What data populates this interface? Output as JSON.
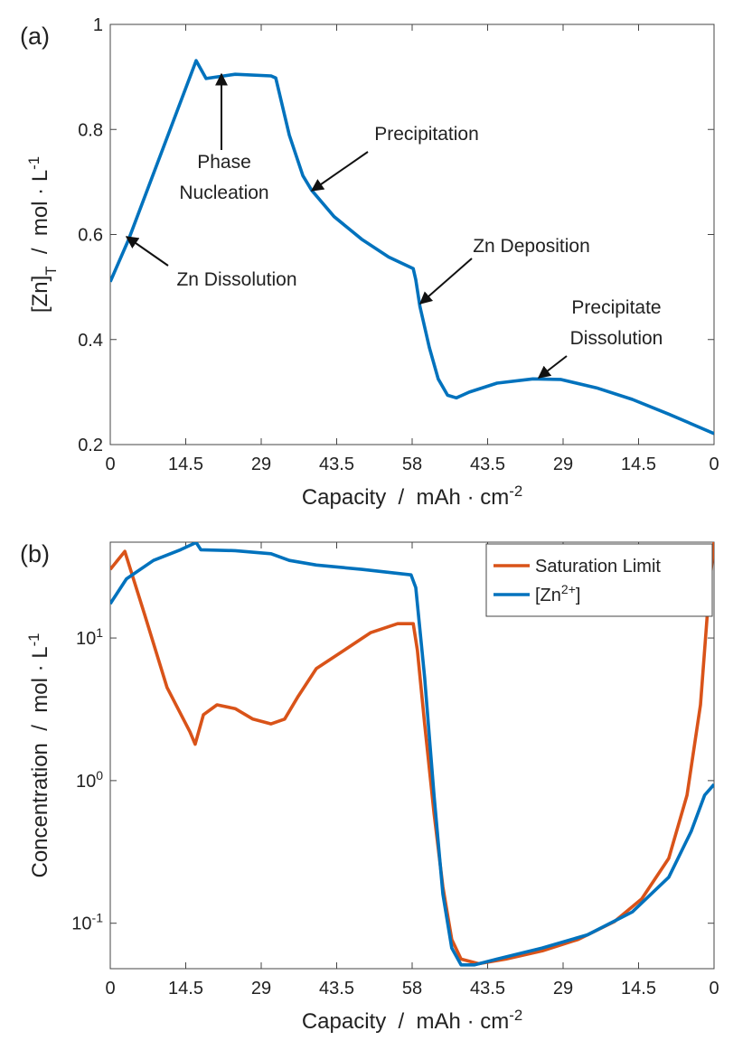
{
  "chart_data": [
    {
      "type": "line",
      "panel_label": "(a)",
      "xlabel": [
        {
          "text": "Capacity  /  mAh · cm"
        },
        {
          "sup": "-2"
        }
      ],
      "ylabel": [
        {
          "text": "[Zn]"
        },
        {
          "sub": "T"
        },
        {
          "text": "  /  mol · L"
        },
        {
          "sup": "-1"
        }
      ],
      "xlim": [
        0,
        116
      ],
      "ylim": [
        0.2,
        1
      ],
      "xticks": [
        0,
        14.5,
        29,
        43.5,
        58,
        {
          "value": 72.5,
          "label": "43.5"
        },
        {
          "value": 87,
          "label": "29"
        },
        {
          "value": 101.5,
          "label": "14.5"
        },
        {
          "value": 116,
          "label": "0"
        }
      ],
      "yticks": [
        0.2,
        0.4,
        0.6,
        0.8,
        1
      ],
      "annotations": [
        [
          "Phase",
          "Nucleation"
        ],
        [
          "Precipitation"
        ],
        [
          "Zn Dissolution"
        ],
        [
          "Zn Deposition"
        ],
        [
          "Precipitate",
          "Dissolution"
        ]
      ],
      "series": [
        {
          "color": "#0072bd",
          "x": [
            0,
            3.5,
            16.5,
            18.4,
            24,
            30.9,
            31.8,
            34.4,
            37,
            38.7,
            43,
            48.3,
            53.5,
            58.2,
            58.7,
            59.5,
            61.3,
            63,
            64.8,
            66.5,
            69,
            74.3,
            81.2,
            86.5,
            93.4,
            100.3,
            107.3,
            116
          ],
          "values": [
            0.51,
            0.59,
            0.931,
            0.897,
            0.905,
            0.902,
            0.898,
            0.789,
            0.712,
            0.684,
            0.634,
            0.591,
            0.557,
            0.535,
            0.514,
            0.463,
            0.385,
            0.325,
            0.294,
            0.289,
            0.3,
            0.317,
            0.325,
            0.324,
            0.308,
            0.286,
            0.258,
            0.221
          ]
        }
      ]
    },
    {
      "type": "line",
      "panel_label": "(b)",
      "yscale": "log",
      "legend": "upper right",
      "xlabel": [
        {
          "text": "Capacity  /  mAh · cm"
        },
        {
          "sup": "-2"
        }
      ],
      "ylabel": [
        {
          "text": "Concentration  /  mol · L"
        },
        {
          "sup": "-1"
        }
      ],
      "xlim": [
        0,
        116
      ],
      "ylim": [
        0.048,
        47
      ],
      "xticks": [
        0,
        14.5,
        29,
        43.5,
        58,
        {
          "value": 72.5,
          "label": "43.5"
        },
        {
          "value": 87,
          "label": "29"
        },
        {
          "value": 101.5,
          "label": "14.5"
        },
        {
          "value": 116,
          "label": "0"
        }
      ],
      "yticks": [
        {
          "value": 0.1,
          "label": [
            {
              "text": "10"
            },
            {
              "sup": "-1"
            }
          ]
        },
        {
          "value": 1,
          "label": [
            {
              "text": "10"
            },
            {
              "sup": "0"
            }
          ]
        },
        {
          "value": 10,
          "label": [
            {
              "text": "10"
            },
            {
              "sup": "1"
            }
          ]
        }
      ],
      "series": [
        {
          "name": "Saturation Limit",
          "color": "#d95319",
          "x": [
            0,
            2.8,
            6.6,
            10.9,
            15.3,
            16.3,
            17.9,
            20.5,
            24,
            27.4,
            30.9,
            33.5,
            36.1,
            39.6,
            44.8,
            50,
            55.2,
            58.2,
            59,
            60.4,
            62.2,
            63.9,
            65.6,
            67.4,
            70.8,
            76,
            83,
            89.9,
            96.9,
            102.1,
            107.3,
            110.8,
            113.4,
            115.1,
            116
          ],
          "values": [
            30.3,
            40.5,
            14.6,
            4.5,
            2.2,
            1.8,
            2.9,
            3.4,
            3.2,
            2.7,
            2.5,
            2.7,
            3.9,
            6.1,
            8.15,
            10.9,
            12.6,
            12.6,
            8.2,
            2.5,
            0.59,
            0.18,
            0.077,
            0.056,
            0.052,
            0.056,
            0.064,
            0.077,
            0.103,
            0.148,
            0.285,
            0.79,
            3.4,
            22.6,
            47
          ]
        },
        {
          "name": [
            {
              "text": "[Zn"
            },
            {
              "sup": "2+"
            },
            {
              "text": "]"
            }
          ],
          "color": "#0072bd",
          "x": [
            0,
            3.1,
            8.3,
            13.5,
            16.5,
            17.4,
            24,
            30.9,
            34.4,
            39.6,
            48.3,
            57.8,
            58.7,
            60.4,
            62.2,
            63.9,
            65.6,
            67.4,
            70,
            74.3,
            83,
            91.7,
            100.3,
            107.3,
            111.6,
            114.2,
            116
          ],
          "values": [
            17.4,
            26,
            35,
            41.6,
            46.7,
            41.6,
            41,
            39,
            35,
            32.5,
            30.3,
            27.7,
            22.6,
            5.3,
            0.79,
            0.16,
            0.067,
            0.051,
            0.051,
            0.056,
            0.067,
            0.083,
            0.12,
            0.21,
            0.44,
            0.79,
            0.94
          ]
        }
      ]
    }
  ]
}
